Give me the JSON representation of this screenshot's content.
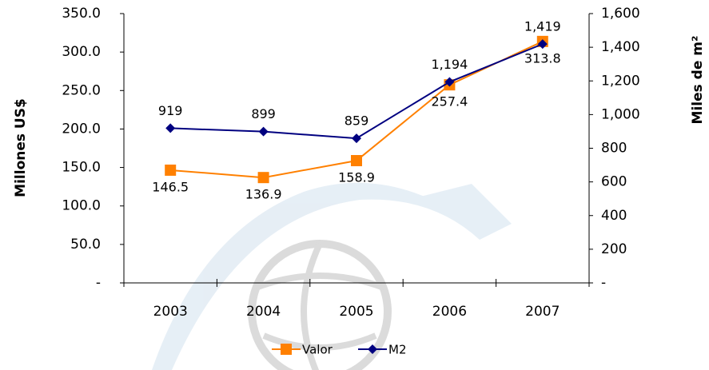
{
  "chart_data": {
    "type": "line",
    "y_label": "Millones US$",
    "y2_label": "Miles de m²",
    "categories": [
      "2003",
      "2004",
      "2005",
      "2006",
      "2007"
    ],
    "series": [
      {
        "name": "Valor",
        "color": "#ff8000",
        "marker": "square",
        "values": [
          146.5,
          136.9,
          158.9,
          257.4,
          313.8
        ]
      },
      {
        "name": "M2",
        "color": "#000080",
        "marker": "diamond",
        "axis": "y2",
        "values": [
          919,
          899,
          859,
          1194,
          1419
        ],
        "value_labels": [
          "919",
          "899",
          "859",
          "1,194",
          "1,419"
        ]
      }
    ],
    "ylim": [
      0,
      350
    ],
    "yticks": [
      {
        "value": 0,
        "label": "-"
      },
      {
        "value": 50,
        "label": "50.0"
      },
      {
        "value": 100,
        "label": "100.0"
      },
      {
        "value": 150,
        "label": "150.0"
      },
      {
        "value": 200,
        "label": "200.0"
      },
      {
        "value": 250,
        "label": "250.0"
      },
      {
        "value": 300,
        "label": "300.0"
      },
      {
        "value": 350,
        "label": "350.0"
      }
    ],
    "y2lim": [
      0,
      1600
    ],
    "y2ticks": [
      {
        "value": 0,
        "label": "-"
      },
      200,
      400,
      600,
      800,
      {
        "value": 1000,
        "label": "1,000"
      },
      {
        "value": 1200,
        "label": "1,200"
      },
      {
        "value": 1400,
        "label": "1,400"
      },
      {
        "value": 1600,
        "label": "1,600"
      }
    ],
    "legend": "bottom"
  }
}
